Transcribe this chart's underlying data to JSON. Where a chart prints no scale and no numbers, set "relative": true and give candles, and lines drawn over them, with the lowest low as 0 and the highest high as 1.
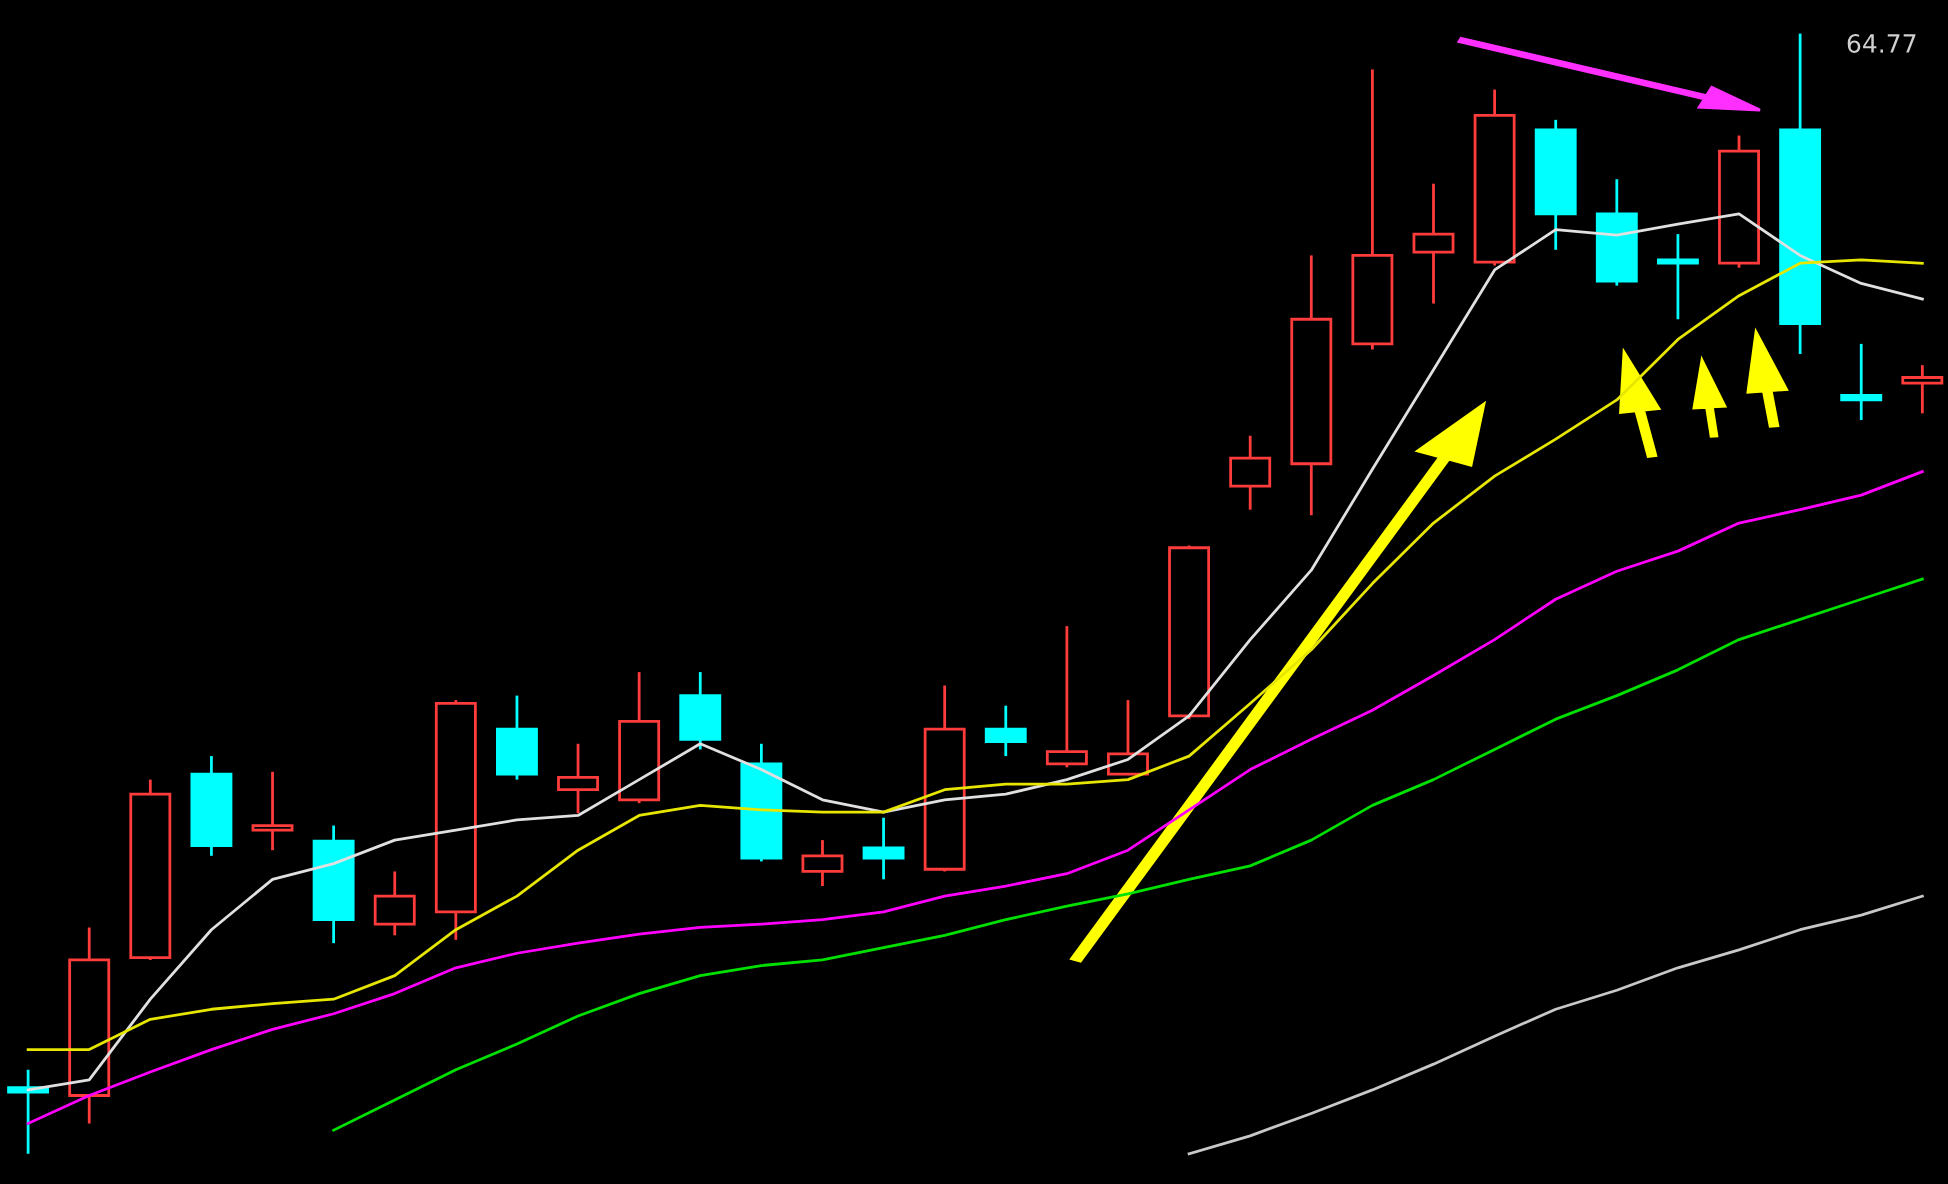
{
  "chart_data": {
    "type": "candlestick",
    "relative": true,
    "categories": [
      null,
      null,
      null,
      null,
      null,
      null,
      null,
      null,
      null,
      null,
      null,
      null,
      null,
      null,
      null,
      null,
      null,
      null,
      null,
      null,
      null,
      null,
      null,
      null,
      null,
      null,
      null,
      null,
      null,
      null,
      null,
      null
    ],
    "ohlc": [
      [
        0.059,
        0.075,
        0,
        0.055
      ],
      [
        0.052,
        0.202,
        0.027,
        0.173
      ],
      [
        0.175,
        0.334,
        0.173,
        0.321
      ],
      [
        0.339,
        0.355,
        0.266,
        0.275
      ],
      [
        0.289,
        0.341,
        0.271,
        0.293
      ],
      [
        0.279,
        0.293,
        0.188,
        0.209
      ],
      [
        0.205,
        0.252,
        0.195,
        0.23
      ],
      [
        0.216,
        0.405,
        0.191,
        0.402
      ],
      [
        0.379,
        0.409,
        0.334,
        0.339
      ],
      [
        0.325,
        0.366,
        0.304,
        0.336
      ],
      [
        0.316,
        0.43,
        0.313,
        0.386
      ],
      [
        0.409,
        0.43,
        0.361,
        0.37
      ],
      [
        0.348,
        0.366,
        0.261,
        0.264
      ],
      [
        0.252,
        0.28,
        0.239,
        0.266
      ],
      [
        0.273,
        0.3,
        0.245,
        0.264
      ],
      [
        0.254,
        0.418,
        0.252,
        0.379
      ],
      [
        0.379,
        0.4,
        0.355,
        0.368
      ],
      [
        0.348,
        0.471,
        0.345,
        0.359
      ],
      [
        0.339,
        0.405,
        0.338,
        0.357
      ],
      [
        0.391,
        0.543,
        0.388,
        0.541
      ],
      [
        0.596,
        0.641,
        0.575,
        0.621
      ],
      [
        0.616,
        0.802,
        0.57,
        0.745
      ],
      [
        0.723,
        0.968,
        0.718,
        0.802
      ],
      [
        0.805,
        0.866,
        0.759,
        0.821
      ],
      [
        0.796,
        0.95,
        0.793,
        0.927
      ],
      [
        0.914,
        0.923,
        0.807,
        0.839
      ],
      [
        0.839,
        0.87,
        0.775,
        0.779
      ],
      [
        0.798,
        0.821,
        0.745,
        0.795
      ],
      [
        0.795,
        0.909,
        0.791,
        0.895
      ],
      [
        0.914,
        1,
        0.714,
        0.741
      ],
      [
        0.677,
        0.723,
        0.655,
        0.673
      ],
      [
        0.688,
        0.704,
        0.661,
        0.693
      ]
    ],
    "colors": [
      "#00ffff",
      "#ff3c3c",
      "#ff3c3c",
      "#00ffff",
      "#ff3c3c",
      "#00ffff",
      "#ff3c3c",
      "#ff3c3c",
      "#00ffff",
      "#ff3c3c",
      "#ff3c3c",
      "#00ffff",
      "#00ffff",
      "#ff3c3c",
      "#00ffff",
      "#ff3c3c",
      "#00ffff",
      "#ff3c3c",
      "#ff3c3c",
      "#ff3c3c",
      "#ff3c3c",
      "#ff3c3c",
      "#ff3c3c",
      "#ff3c3c",
      "#ff3c3c",
      "#00ffff",
      "#00ffff",
      "#00ffff",
      "#ff3c3c",
      "#00ffff",
      "#00ffff",
      "#ff3c3c"
    ],
    "series": [
      {
        "type": "line",
        "color": "#e0e0e0",
        "values": [
          0.057,
          0.066,
          0.138,
          0.2,
          0.245,
          0.259,
          0.28,
          0.289,
          0.298,
          0.302,
          0.334,
          0.366,
          0.343,
          0.316,
          0.305,
          0.316,
          0.321,
          0.334,
          0.352,
          0.391,
          0.459,
          0.521,
          0.611,
          0.7,
          0.789,
          0.825,
          0.82,
          0.83,
          0.839,
          0.802,
          0.777,
          0.763
        ]
      },
      {
        "type": "line",
        "color": "#e6e600",
        "values": [
          0.093,
          0.093,
          0.12,
          0.129,
          0.134,
          0.138,
          0.159,
          0.2,
          0.23,
          0.271,
          0.302,
          0.311,
          0.307,
          0.305,
          0.305,
          0.325,
          0.33,
          0.33,
          0.334,
          0.355,
          0.402,
          0.45,
          0.509,
          0.563,
          0.605,
          0.638,
          0.673,
          0.727,
          0.766,
          0.795,
          0.798,
          0.795
        ]
      },
      {
        "type": "line",
        "color": "#ff00ff",
        "values": [
          0.027,
          0.052,
          0.073,
          0.093,
          0.111,
          0.125,
          0.143,
          0.166,
          0.179,
          0.188,
          0.196,
          0.202,
          0.205,
          0.209,
          0.216,
          0.23,
          0.239,
          0.25,
          0.271,
          0.307,
          0.343,
          0.37,
          0.396,
          0.427,
          0.459,
          0.495,
          0.52,
          0.538,
          0.563,
          0.575,
          0.588,
          0.609
        ]
      },
      {
        "type": "line",
        "color": "#00e000",
        "values": [
          null,
          null,
          null,
          null,
          null,
          0.021,
          0.048,
          0.075,
          0.098,
          0.123,
          0.143,
          0.159,
          0.168,
          0.173,
          0.184,
          0.195,
          0.209,
          0.221,
          0.232,
          0.245,
          0.257,
          0.28,
          0.311,
          0.334,
          0.361,
          0.388,
          0.409,
          0.432,
          0.459,
          0.477,
          0.495,
          0.513
        ]
      },
      {
        "type": "line",
        "color": "#c8c8c8",
        "values": [
          null,
          null,
          null,
          null,
          null,
          null,
          null,
          null,
          null,
          null,
          null,
          null,
          null,
          null,
          null,
          null,
          null,
          null,
          null,
          0,
          0.016,
          0.036,
          0.057,
          0.08,
          0.105,
          0.129,
          0.146,
          0.166,
          0.182,
          0.2,
          0.213,
          0.23
        ]
      }
    ],
    "annotations": [
      "64.77"
    ]
  }
}
